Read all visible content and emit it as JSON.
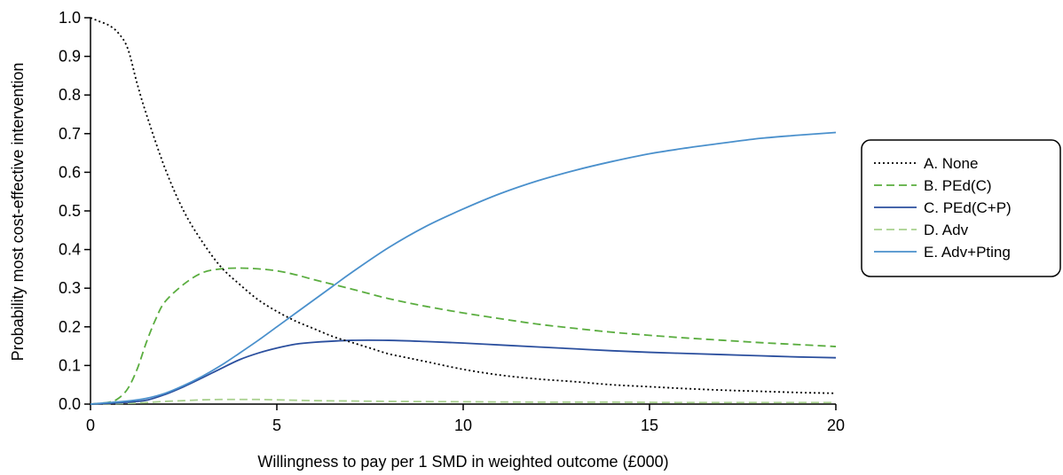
{
  "chart_data": {
    "type": "line",
    "title": "",
    "xlabel": "Willingness to pay per 1 SMD in weighted outcome (£000)",
    "ylabel": "Probability most cost-effective intervention",
    "xlim": [
      0,
      20
    ],
    "ylim": [
      0,
      1.0
    ],
    "x_ticks": [
      "0",
      "5",
      "10",
      "15",
      "20"
    ],
    "y_ticks": [
      "0.0",
      "0.1",
      "0.2",
      "0.3",
      "0.4",
      "0.5",
      "0.6",
      "0.7",
      "0.8",
      "0.9",
      "1.0"
    ],
    "grid": false,
    "legend_position": "right",
    "series": [
      {
        "name": "A. None",
        "color": "#000000",
        "style": "dotted",
        "x": [
          0,
          0.25,
          0.5,
          0.75,
          1,
          1.25,
          1.5,
          2,
          2.5,
          3,
          3.5,
          4,
          4.5,
          5,
          5.5,
          6,
          6.5,
          7,
          7.5,
          8,
          8.5,
          9,
          10,
          11,
          12,
          13,
          14,
          15,
          16,
          17,
          18,
          19,
          20
        ],
        "y": [
          1.0,
          0.99,
          0.98,
          0.96,
          0.92,
          0.83,
          0.75,
          0.61,
          0.5,
          0.42,
          0.355,
          0.31,
          0.27,
          0.24,
          0.215,
          0.195,
          0.175,
          0.16,
          0.145,
          0.13,
          0.12,
          0.11,
          0.09,
          0.075,
          0.065,
          0.058,
          0.05,
          0.045,
          0.04,
          0.036,
          0.033,
          0.03,
          0.028
        ]
      },
      {
        "name": "B. PEd(C)",
        "color": "#5aad3f",
        "style": "dashed",
        "x": [
          0,
          0.5,
          0.75,
          1,
          1.25,
          1.5,
          1.75,
          2,
          2.5,
          3,
          3.5,
          4,
          4.5,
          5,
          5.5,
          6,
          7,
          8,
          9,
          10,
          11,
          12,
          13,
          14,
          15,
          16,
          17,
          18,
          19,
          20
        ],
        "y": [
          0.0,
          0.005,
          0.015,
          0.04,
          0.09,
          0.16,
          0.22,
          0.265,
          0.31,
          0.34,
          0.35,
          0.352,
          0.35,
          0.345,
          0.335,
          0.322,
          0.298,
          0.273,
          0.253,
          0.236,
          0.221,
          0.207,
          0.196,
          0.186,
          0.178,
          0.171,
          0.165,
          0.159,
          0.154,
          0.149
        ]
      },
      {
        "name": "C. PEd(C+P)",
        "color": "#2b4f9e",
        "style": "solid",
        "x": [
          0,
          0.5,
          1,
          1.5,
          2,
          2.5,
          3,
          3.5,
          4,
          4.5,
          5,
          5.5,
          6,
          7,
          8,
          9,
          10,
          11,
          12,
          13,
          14,
          15,
          16,
          17,
          18,
          19,
          20
        ],
        "y": [
          0.0,
          0.002,
          0.005,
          0.01,
          0.025,
          0.045,
          0.068,
          0.092,
          0.115,
          0.132,
          0.145,
          0.155,
          0.16,
          0.165,
          0.165,
          0.162,
          0.158,
          0.153,
          0.148,
          0.143,
          0.138,
          0.134,
          0.131,
          0.128,
          0.125,
          0.122,
          0.12
        ]
      },
      {
        "name": "D. Adv",
        "color": "#a8d08d",
        "style": "dashed",
        "x": [
          0,
          0.5,
          1,
          1.5,
          2,
          2.5,
          3,
          3.5,
          4,
          4.5,
          5,
          6,
          7,
          8,
          10,
          12,
          14,
          16,
          18,
          20
        ],
        "y": [
          0.0,
          0.001,
          0.002,
          0.004,
          0.007,
          0.009,
          0.011,
          0.012,
          0.012,
          0.012,
          0.011,
          0.009,
          0.008,
          0.007,
          0.006,
          0.005,
          0.005,
          0.004,
          0.004,
          0.004
        ]
      },
      {
        "name": "E. Adv+Pting",
        "color": "#4a90cc",
        "style": "solid",
        "x": [
          0,
          0.5,
          1,
          1.5,
          2,
          2.5,
          3,
          3.5,
          4,
          4.5,
          5,
          5.5,
          6,
          6.5,
          7,
          8,
          9,
          10,
          11,
          12,
          13,
          14,
          15,
          16,
          17,
          18,
          19,
          20
        ],
        "y": [
          0.0,
          0.004,
          0.008,
          0.015,
          0.028,
          0.048,
          0.072,
          0.1,
          0.132,
          0.165,
          0.2,
          0.235,
          0.27,
          0.305,
          0.34,
          0.405,
          0.46,
          0.505,
          0.545,
          0.578,
          0.605,
          0.628,
          0.648,
          0.663,
          0.676,
          0.688,
          0.696,
          0.703
        ]
      }
    ]
  }
}
